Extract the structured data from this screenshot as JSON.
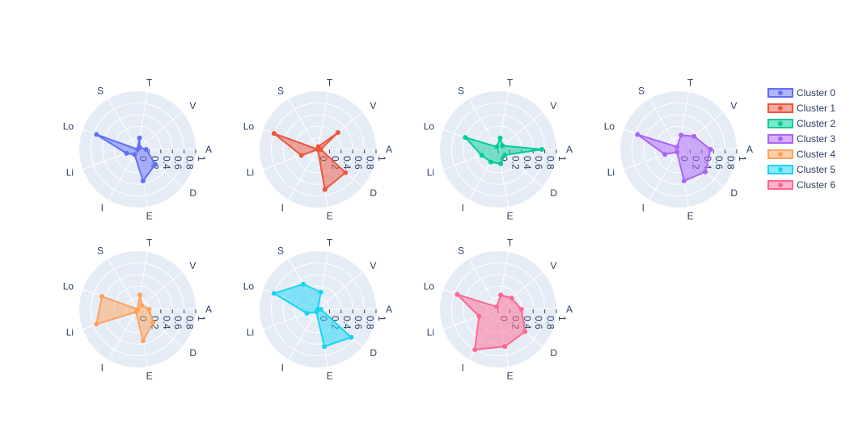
{
  "chart_data": {
    "type": "radar",
    "axes": [
      "A",
      "V",
      "T",
      "S",
      "Lo",
      "Li",
      "I",
      "E",
      "D"
    ],
    "radial_range": [
      0,
      1
    ],
    "radial_ticks": [
      "0",
      "0.2",
      "0.4",
      "0.6",
      "0.8",
      "1"
    ],
    "grid": true,
    "legend_position": "right",
    "series": [
      {
        "name": "Cluster 0",
        "color": "#636efa",
        "values": [
          0.15,
          0.05,
          0.2,
          0.0,
          0.75,
          0.2,
          0.1,
          0.55,
          0.4
        ]
      },
      {
        "name": "Cluster 1",
        "color": "#ef553b",
        "values": [
          0.05,
          0.45,
          0.05,
          0.0,
          0.8,
          0.3,
          0.0,
          0.7,
          0.62
        ]
      },
      {
        "name": "Cluster 2",
        "color": "#00cc96",
        "values": [
          0.75,
          0.1,
          0.2,
          0.05,
          0.6,
          0.3,
          0.25,
          0.25,
          0.15
        ]
      },
      {
        "name": "Cluster 3",
        "color": "#ab63fa",
        "values": [
          0.55,
          0.35,
          0.25,
          0.05,
          0.75,
          0.25,
          0.05,
          0.55,
          0.6
        ]
      },
      {
        "name": "Cluster 4",
        "color": "#fea15a",
        "values": [
          0.2,
          0.1,
          0.25,
          0.0,
          0.65,
          0.75,
          0.05,
          0.55,
          0.35
        ]
      },
      {
        "name": "Cluster 5",
        "color": "#19d3f3",
        "values": [
          0.05,
          0.0,
          0.3,
          0.5,
          0.8,
          0.2,
          0.05,
          0.65,
          0.75
        ]
      },
      {
        "name": "Cluster 6",
        "color": "#ff6692",
        "values": [
          0.4,
          0.3,
          0.25,
          0.05,
          0.75,
          0.35,
          0.8,
          0.65,
          0.6
        ]
      }
    ]
  }
}
